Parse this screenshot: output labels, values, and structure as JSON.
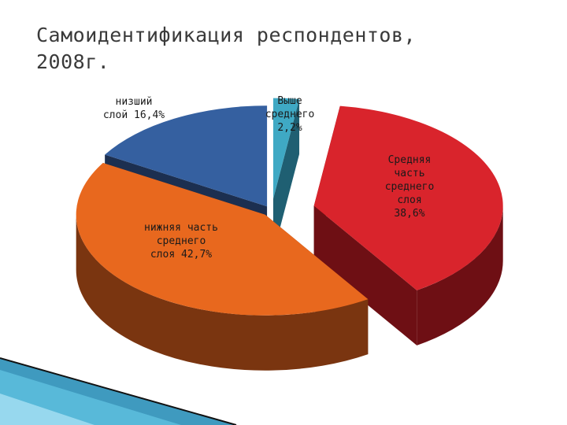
{
  "slide": {
    "title": "Самоидентификация респондентов,\n2008г."
  },
  "chart_data": {
    "type": "pie",
    "title": "Самоидентификация респондентов, 2008г.",
    "unit": "%",
    "slices": [
      {
        "label_lines": [
          "Выше",
          "среднего",
          "2,2%"
        ],
        "value": 2.2,
        "color": "#3fa9c4",
        "side_color": "#1f5f72"
      },
      {
        "label_lines": [
          "Средняя",
          "часть",
          "среднего",
          "слоя",
          "38,6%"
        ],
        "value": 38.6,
        "color": "#d9242c",
        "side_color": "#6e0f14"
      },
      {
        "label_lines": [
          "нижняя часть",
          "среднего",
          "слоя 42,7%"
        ],
        "value": 42.7,
        "color": "#e8681e",
        "side_color": "#7a3510"
      },
      {
        "label_lines": [
          "низший",
          "слой 16,4%"
        ],
        "value": 16.4,
        "color": "#3560a0",
        "side_color": "#1c2f50"
      }
    ]
  }
}
